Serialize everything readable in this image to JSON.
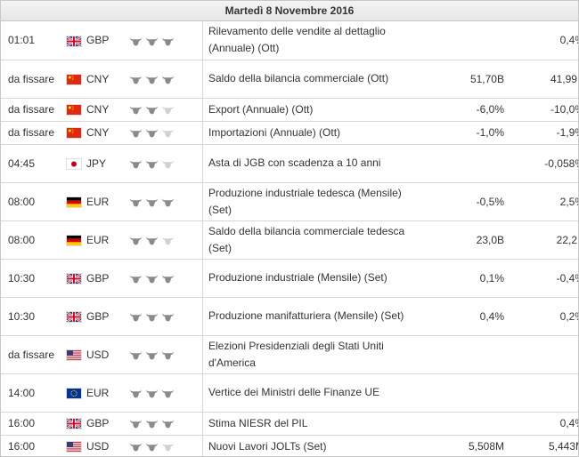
{
  "date": "Martedì 8 Novembre 2016",
  "colors": {
    "bull_on": "#8a8a8a",
    "bull_off": "#d2d2d2"
  },
  "events": [
    {
      "time": "01:01",
      "flag": "gb",
      "currency": "GBP",
      "importance": 3,
      "event": "Rilevamento delle vendite al dettaglio (Annuale) (Ott)",
      "forecast": "",
      "previous": "0,4%"
    },
    {
      "time": "da fissare",
      "flag": "cn",
      "currency": "CNY",
      "importance": 3,
      "event": "Saldo della bilancia commerciale (Ott)",
      "forecast": "51,70B",
      "previous": "41,99B"
    },
    {
      "time": "da fissare",
      "flag": "cn",
      "currency": "CNY",
      "importance": 2,
      "event": "Export (Annuale) (Ott)",
      "forecast": "-6,0%",
      "previous": "-10,0%"
    },
    {
      "time": "da fissare",
      "flag": "cn",
      "currency": "CNY",
      "importance": 2,
      "event": "Importazioni (Annuale) (Ott)",
      "forecast": "-1,0%",
      "previous": "-1,9%"
    },
    {
      "time": "04:45",
      "flag": "jp",
      "currency": "JPY",
      "importance": 2,
      "event": "Asta di JGB con scadenza a 10 anni",
      "forecast": "",
      "previous": "-0,058%"
    },
    {
      "time": "08:00",
      "flag": "de",
      "currency": "EUR",
      "importance": 3,
      "event": "Produzione industriale tedesca (Mensile) (Set)",
      "forecast": "-0,5%",
      "previous": "2,5%"
    },
    {
      "time": "08:00",
      "flag": "de",
      "currency": "EUR",
      "importance": 2,
      "event": "Saldo della bilancia commerciale tedesca (Set)",
      "forecast": "23,0B",
      "previous": "22,2B"
    },
    {
      "time": "10:30",
      "flag": "gb",
      "currency": "GBP",
      "importance": 3,
      "event": "Produzione industriale (Mensile) (Set)",
      "forecast": "0,1%",
      "previous": "-0,4%"
    },
    {
      "time": "10:30",
      "flag": "gb",
      "currency": "GBP",
      "importance": 3,
      "event": "Produzione manifatturiera (Mensile) (Set)",
      "forecast": "0,4%",
      "previous": "0,2%"
    },
    {
      "time": "da fissare",
      "flag": "us",
      "currency": "USD",
      "importance": 3,
      "event": "Elezioni Presidenziali degli Stati Uniti d'America",
      "forecast": "",
      "previous": ""
    },
    {
      "time": "14:00",
      "flag": "eu",
      "currency": "EUR",
      "importance": 3,
      "event": "Vertice dei Ministri delle Finanze UE",
      "forecast": "",
      "previous": ""
    },
    {
      "time": "16:00",
      "flag": "gb",
      "currency": "GBP",
      "importance": 3,
      "event": "Stima NIESR del PIL",
      "forecast": "",
      "previous": "0,4%"
    },
    {
      "time": "16:00",
      "flag": "us",
      "currency": "USD",
      "importance": 2,
      "event": "Nuovi Lavori JOLTs (Set)",
      "forecast": "5,508M",
      "previous": "5,443M"
    }
  ]
}
